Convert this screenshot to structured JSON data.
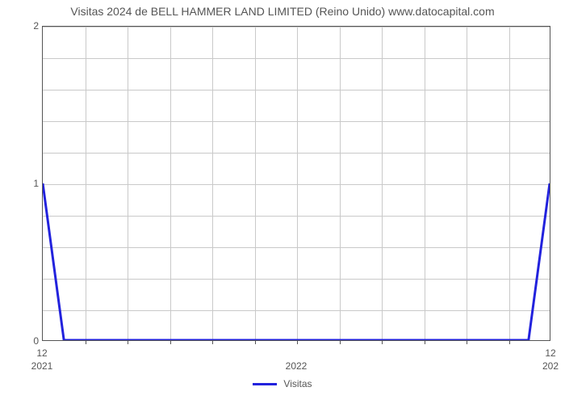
{
  "chart": {
    "type": "line",
    "title": "Visitas 2024 de BELL HAMMER LAND LIMITED (Reino Unido) www.datocapital.com",
    "title_fontsize": 14,
    "title_color": "#555555",
    "background_color": "#ffffff",
    "plot_border_color": "#555555",
    "grid_color": "#c9c9c9",
    "grid_on": true,
    "ylim": [
      0,
      2
    ],
    "ymajor_ticks": [
      0,
      1,
      2
    ],
    "yminor_count_between": 4,
    "xlim": [
      0,
      12
    ],
    "xmajor_labels_top": [
      "12",
      "12"
    ],
    "xmajor_labels_bottom": [
      "2021",
      "2022",
      "202"
    ],
    "xminor_count_between": 12,
    "series": {
      "name": "Visitas",
      "color": "#2222dd",
      "line_width": 3,
      "x": [
        0,
        0.5,
        11.5,
        12
      ],
      "y": [
        1,
        0,
        0,
        1
      ]
    },
    "legend": {
      "position": "bottom-center",
      "label": "Visitas",
      "color": "#2222dd"
    },
    "label_fontsize": 12,
    "label_color": "#555555"
  }
}
